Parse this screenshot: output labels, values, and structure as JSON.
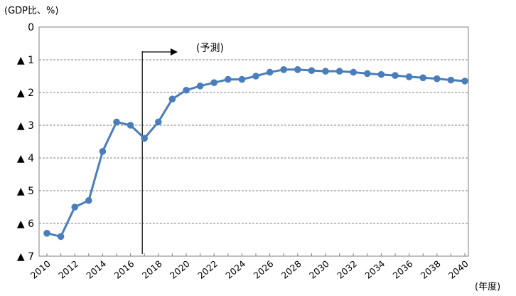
{
  "chart_data": {
    "type": "line",
    "title": "",
    "ylabel": "(GDP比、%)",
    "xlabel": "(年度)",
    "y_tick_labels": [
      "0",
      "▲ 1",
      "▲ 2",
      "▲ 3",
      "▲ 4",
      "▲ 5",
      "▲ 6",
      "▲ 7"
    ],
    "x_tick_labels": [
      "2010",
      "2012",
      "2014",
      "2016",
      "2018",
      "2020",
      "2022",
      "2024",
      "2026",
      "2028",
      "2030",
      "2032",
      "2034",
      "2036",
      "2038",
      "2040"
    ],
    "annotation": "(予測)",
    "forecast_start_year": 2017,
    "ylim": [
      0,
      -7
    ],
    "y_axis_inverted": true,
    "grid": "horizontal dashed",
    "series": [
      {
        "color": "#4a7ebb",
        "x": [
          2010,
          2011,
          2012,
          2013,
          2014,
          2015,
          2016,
          2017,
          2018,
          2019,
          2020,
          2021,
          2022,
          2023,
          2024,
          2025,
          2026,
          2027,
          2028,
          2029,
          2030,
          2031,
          2032,
          2033,
          2034,
          2035,
          2036,
          2037,
          2038,
          2039,
          2040
        ],
        "values": [
          -6.3,
          -6.4,
          -5.5,
          -5.3,
          -3.8,
          -2.9,
          -3.0,
          -3.4,
          -2.9,
          -2.2,
          -1.93,
          -1.8,
          -1.7,
          -1.6,
          -1.6,
          -1.5,
          -1.38,
          -1.3,
          -1.3,
          -1.33,
          -1.35,
          -1.35,
          -1.38,
          -1.42,
          -1.45,
          -1.48,
          -1.52,
          -1.55,
          -1.58,
          -1.62,
          -1.65
        ]
      }
    ]
  }
}
